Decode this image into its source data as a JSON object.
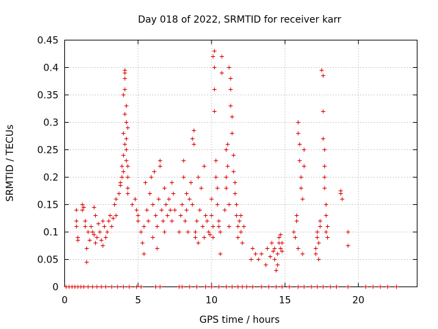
{
  "chart_data": {
    "type": "scatter",
    "title": "Day 018 of 2022, SRMTID for receiver karr",
    "xlabel": "GPS time / hours",
    "ylabel": "SRMTID / TECUs",
    "xlim": [
      0,
      24
    ],
    "ylim": [
      0,
      0.45
    ],
    "grid": true,
    "marker": "+",
    "color": "#dd0000",
    "x_ticks": [
      0,
      5,
      10,
      15,
      20
    ],
    "x_tick_labels": [
      "0",
      "5",
      "10",
      "15",
      "20"
    ],
    "y_ticks": [
      0,
      0.05,
      0.1,
      0.15,
      0.2,
      0.25,
      0.3,
      0.35,
      0.4,
      0.45
    ],
    "y_tick_labels": [
      "0",
      "0.05",
      "0.1",
      "0.15",
      "0.2",
      "0.25",
      "0.3",
      "0.35",
      "0.4",
      "0.45"
    ],
    "series": [
      {
        "name": "SRMTID",
        "points": [
          [
            0.1,
            0
          ],
          [
            0.3,
            0
          ],
          [
            0.5,
            0
          ],
          [
            0.7,
            0
          ],
          [
            0.9,
            0
          ],
          [
            1.1,
            0
          ],
          [
            1.3,
            0
          ],
          [
            1.6,
            0
          ],
          [
            1.9,
            0
          ],
          [
            2.2,
            0
          ],
          [
            2.5,
            0
          ],
          [
            2.8,
            0
          ],
          [
            3.2,
            0
          ],
          [
            3.6,
            0
          ],
          [
            4.0,
            0
          ],
          [
            4.4,
            0
          ],
          [
            4.9,
            0
          ],
          [
            5.2,
            0
          ],
          [
            6.2,
            0
          ],
          [
            6.5,
            0
          ],
          [
            7.8,
            0
          ],
          [
            8.0,
            0
          ],
          [
            8.5,
            0
          ],
          [
            9.0,
            0
          ],
          [
            9.6,
            0
          ],
          [
            10.0,
            0
          ],
          [
            10.5,
            0
          ],
          [
            11.0,
            0
          ],
          [
            11.4,
            0
          ],
          [
            11.8,
            0
          ],
          [
            12.1,
            0
          ],
          [
            12.4,
            0
          ],
          [
            12.8,
            0
          ],
          [
            13.4,
            0
          ],
          [
            13.9,
            0
          ],
          [
            14.4,
            0
          ],
          [
            14.8,
            0
          ],
          [
            15.3,
            0
          ],
          [
            15.9,
            0
          ],
          [
            16.3,
            0
          ],
          [
            16.8,
            0
          ],
          [
            17.2,
            0
          ],
          [
            17.6,
            0
          ],
          [
            18.1,
            0
          ],
          [
            18.5,
            0
          ],
          [
            19.3,
            0
          ],
          [
            20.5,
            0
          ],
          [
            21.0,
            0
          ],
          [
            21.5,
            0
          ],
          [
            22.0,
            0
          ],
          [
            22.6,
            0
          ],
          [
            0.8,
            0.14
          ],
          [
            0.8,
            0.12
          ],
          [
            0.8,
            0.11
          ],
          [
            0.9,
            0.09
          ],
          [
            0.9,
            0.085
          ],
          [
            1.2,
            0.15
          ],
          [
            1.2,
            0.14
          ],
          [
            1.3,
            0.145
          ],
          [
            1.4,
            0.12
          ],
          [
            1.4,
            0.11
          ],
          [
            1.5,
            0.07
          ],
          [
            1.5,
            0.045
          ],
          [
            1.6,
            0.1
          ],
          [
            1.7,
            0.085
          ],
          [
            1.8,
            0.11
          ],
          [
            1.9,
            0.1
          ],
          [
            2.0,
            0.095
          ],
          [
            2.0,
            0.145
          ],
          [
            2.1,
            0.13
          ],
          [
            2.1,
            0.08
          ],
          [
            2.2,
            0.09
          ],
          [
            2.3,
            0.115
          ],
          [
            2.4,
            0.1
          ],
          [
            2.5,
            0.085
          ],
          [
            2.6,
            0.075
          ],
          [
            2.6,
            0.12
          ],
          [
            2.7,
            0.11
          ],
          [
            2.8,
            0.09
          ],
          [
            2.9,
            0.1
          ],
          [
            3.0,
            0.12
          ],
          [
            3.1,
            0.13
          ],
          [
            3.2,
            0.11
          ],
          [
            3.3,
            0.125
          ],
          [
            3.4,
            0.15
          ],
          [
            3.5,
            0.13
          ],
          [
            3.5,
            0.16
          ],
          [
            3.7,
            0.17
          ],
          [
            3.8,
            0.19
          ],
          [
            3.8,
            0.185
          ],
          [
            3.9,
            0.2
          ],
          [
            3.9,
            0.22
          ],
          [
            4.0,
            0.24
          ],
          [
            4.0,
            0.28
          ],
          [
            4.0,
            0.35
          ],
          [
            4.1,
            0.39
          ],
          [
            4.1,
            0.395
          ],
          [
            4.1,
            0.38
          ],
          [
            4.1,
            0.36
          ],
          [
            4.2,
            0.33
          ],
          [
            4.2,
            0.3
          ],
          [
            4.2,
            0.27
          ],
          [
            4.2,
            0.25
          ],
          [
            4.3,
            0.22
          ],
          [
            4.3,
            0.2
          ],
          [
            4.3,
            0.18
          ],
          [
            4.3,
            0.17
          ],
          [
            4.2,
            0.23
          ],
          [
            4.1,
            0.26
          ],
          [
            4.0,
            0.21
          ],
          [
            4.3,
            0.29
          ],
          [
            4.1,
            0.315
          ],
          [
            4.6,
            0.15
          ],
          [
            4.8,
            0.16
          ],
          [
            4.9,
            0.14
          ],
          [
            5.0,
            0.12
          ],
          [
            5.0,
            0.13
          ],
          [
            5.2,
            0.1
          ],
          [
            5.3,
            0.08
          ],
          [
            5.4,
            0.06
          ],
          [
            5.4,
            0.11
          ],
          [
            5.5,
            0.19
          ],
          [
            5.6,
            0.14
          ],
          [
            5.7,
            0.12
          ],
          [
            5.8,
            0.17
          ],
          [
            5.9,
            0.2
          ],
          [
            6.0,
            0.15
          ],
          [
            6.0,
            0.09
          ],
          [
            6.1,
            0.21
          ],
          [
            6.2,
            0.13
          ],
          [
            6.3,
            0.11
          ],
          [
            6.3,
            0.07
          ],
          [
            6.4,
            0.16
          ],
          [
            6.5,
            0.23
          ],
          [
            6.5,
            0.22
          ],
          [
            6.6,
            0.14
          ],
          [
            6.7,
            0.12
          ],
          [
            6.8,
            0.1
          ],
          [
            6.8,
            0.18
          ],
          [
            6.9,
            0.15
          ],
          [
            7.0,
            0.13
          ],
          [
            7.1,
            0.16
          ],
          [
            7.2,
            0.14
          ],
          [
            7.3,
            0.12
          ],
          [
            7.3,
            0.19
          ],
          [
            7.4,
            0.17
          ],
          [
            7.5,
            0.14
          ],
          [
            7.8,
            0.1
          ],
          [
            7.9,
            0.13
          ],
          [
            8.0,
            0.15
          ],
          [
            8.1,
            0.23
          ],
          [
            8.1,
            0.2
          ],
          [
            8.2,
            0.12
          ],
          [
            8.3,
            0.17
          ],
          [
            8.3,
            0.14
          ],
          [
            8.4,
            0.1
          ],
          [
            8.5,
            0.16
          ],
          [
            8.6,
            0.19
          ],
          [
            8.7,
            0.15
          ],
          [
            8.7,
            0.27
          ],
          [
            8.8,
            0.285
          ],
          [
            8.8,
            0.26
          ],
          [
            8.9,
            0.1
          ],
          [
            8.9,
            0.09
          ],
          [
            9.0,
            0.12
          ],
          [
            9.1,
            0.2
          ],
          [
            9.1,
            0.08
          ],
          [
            9.2,
            0.14
          ],
          [
            9.3,
            0.18
          ],
          [
            9.4,
            0.11
          ],
          [
            9.5,
            0.09
          ],
          [
            9.5,
            0.22
          ],
          [
            9.6,
            0.13
          ],
          [
            9.7,
            0.12
          ],
          [
            9.8,
            0.1
          ],
          [
            9.9,
            0.095
          ],
          [
            10.0,
            0.16
          ],
          [
            10.0,
            0.13
          ],
          [
            10.1,
            0.11
          ],
          [
            10.1,
            0.09
          ],
          [
            10.1,
            0.42
          ],
          [
            10.2,
            0.43
          ],
          [
            10.2,
            0.4
          ],
          [
            10.2,
            0.36
          ],
          [
            10.2,
            0.32
          ],
          [
            10.3,
            0.23
          ],
          [
            10.3,
            0.2
          ],
          [
            10.4,
            0.18
          ],
          [
            10.4,
            0.15
          ],
          [
            10.5,
            0.12
          ],
          [
            10.5,
            0.11
          ],
          [
            10.6,
            0.06
          ],
          [
            10.6,
            0.1
          ],
          [
            10.7,
            0.42
          ],
          [
            10.7,
            0.39
          ],
          [
            10.9,
            0.14
          ],
          [
            11.0,
            0.18
          ],
          [
            11.0,
            0.2
          ],
          [
            11.0,
            0.25
          ],
          [
            11.1,
            0.26
          ],
          [
            11.1,
            0.22
          ],
          [
            11.2,
            0.15
          ],
          [
            11.2,
            0.11
          ],
          [
            11.2,
            0.4
          ],
          [
            11.3,
            0.38
          ],
          [
            11.3,
            0.36
          ],
          [
            11.3,
            0.33
          ],
          [
            11.4,
            0.31
          ],
          [
            11.4,
            0.28
          ],
          [
            11.5,
            0.24
          ],
          [
            11.5,
            0.21
          ],
          [
            11.6,
            0.19
          ],
          [
            11.6,
            0.17
          ],
          [
            11.7,
            0.15
          ],
          [
            11.7,
            0.13
          ],
          [
            11.8,
            0.11
          ],
          [
            11.8,
            0.09
          ],
          [
            11.9,
            0.12
          ],
          [
            12.0,
            0.1
          ],
          [
            12.0,
            0.13
          ],
          [
            12.1,
            0.08
          ],
          [
            12.2,
            0.11
          ],
          [
            12.7,
            0.05
          ],
          [
            12.8,
            0.07
          ],
          [
            13.0,
            0.06
          ],
          [
            13.2,
            0.05
          ],
          [
            13.4,
            0.06
          ],
          [
            13.7,
            0.04
          ],
          [
            13.8,
            0.07
          ],
          [
            14.0,
            0.055
          ],
          [
            14.1,
            0.08
          ],
          [
            14.2,
            0.065
          ],
          [
            14.3,
            0.05
          ],
          [
            14.3,
            0.07
          ],
          [
            14.4,
            0.03
          ],
          [
            14.5,
            0.04
          ],
          [
            14.5,
            0.06
          ],
          [
            14.6,
            0.08
          ],
          [
            14.6,
            0.09
          ],
          [
            14.7,
            0.07
          ],
          [
            14.7,
            0.095
          ],
          [
            14.8,
            0.065
          ],
          [
            14.8,
            0.08
          ],
          [
            15.6,
            0.1
          ],
          [
            15.7,
            0.09
          ],
          [
            15.8,
            0.12
          ],
          [
            15.8,
            0.13
          ],
          [
            15.9,
            0.07
          ],
          [
            15.9,
            0.3
          ],
          [
            15.9,
            0.28
          ],
          [
            16.0,
            0.26
          ],
          [
            16.0,
            0.23
          ],
          [
            16.1,
            0.2
          ],
          [
            16.1,
            0.18
          ],
          [
            16.2,
            0.16
          ],
          [
            16.2,
            0.06
          ],
          [
            16.3,
            0.25
          ],
          [
            16.3,
            0.22
          ],
          [
            17.1,
            0.06
          ],
          [
            17.1,
            0.07
          ],
          [
            17.2,
            0.09
          ],
          [
            17.2,
            0.1
          ],
          [
            17.3,
            0.05
          ],
          [
            17.3,
            0.08
          ],
          [
            17.4,
            0.11
          ],
          [
            17.4,
            0.12
          ],
          [
            17.5,
            0.395
          ],
          [
            17.6,
            0.385
          ],
          [
            17.6,
            0.32
          ],
          [
            17.6,
            0.27
          ],
          [
            17.7,
            0.25
          ],
          [
            17.7,
            0.22
          ],
          [
            17.7,
            0.2
          ],
          [
            17.7,
            0.18
          ],
          [
            17.8,
            0.15
          ],
          [
            17.8,
            0.13
          ],
          [
            17.8,
            0.1
          ],
          [
            17.9,
            0.09
          ],
          [
            17.9,
            0.11
          ],
          [
            18.8,
            0.175
          ],
          [
            18.8,
            0.17
          ],
          [
            18.9,
            0.16
          ],
          [
            19.3,
            0.1
          ],
          [
            19.3,
            0.075
          ]
        ]
      }
    ]
  }
}
